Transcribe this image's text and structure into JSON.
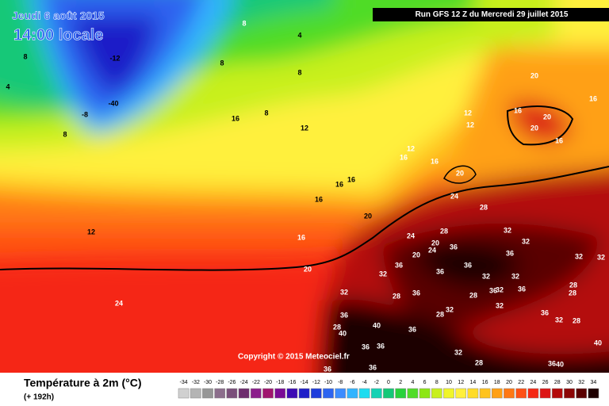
{
  "header": {
    "date": "Jeudi 6 août 2015",
    "time": "14:00 locale"
  },
  "run": "Run GFS 12 Z du Mercredi 29 juillet 2015",
  "copyright": "Copyright © 2015 Meteociel.fr",
  "legend": {
    "title": "Température à 2m (°C)",
    "subtitle": "(+ 192h)",
    "scale": [
      {
        "value": -34,
        "color": "#d0d0d0"
      },
      {
        "value": -32,
        "color": "#b4b4b4"
      },
      {
        "value": -30,
        "color": "#969696"
      },
      {
        "value": -28,
        "color": "#8c6e8c"
      },
      {
        "value": -26,
        "color": "#7a4f7a"
      },
      {
        "value": -24,
        "color": "#6e2d6e"
      },
      {
        "value": -22,
        "color": "#8c1e8c"
      },
      {
        "value": -20,
        "color": "#a0146e"
      },
      {
        "value": -18,
        "color": "#7a0a96"
      },
      {
        "value": -16,
        "color": "#3c0ab4"
      },
      {
        "value": -14,
        "color": "#1e1ec8"
      },
      {
        "value": -12,
        "color": "#1e3cdc"
      },
      {
        "value": -10,
        "color": "#2d64f0"
      },
      {
        "value": -8,
        "color": "#3c8cff"
      },
      {
        "value": -6,
        "color": "#32b4ff"
      },
      {
        "value": -4,
        "color": "#1edcf0"
      },
      {
        "value": -2,
        "color": "#14d2b4"
      },
      {
        "value": 0,
        "color": "#14c878"
      },
      {
        "value": 2,
        "color": "#28d23c"
      },
      {
        "value": 4,
        "color": "#50dc28"
      },
      {
        "value": 6,
        "color": "#8ce614"
      },
      {
        "value": 8,
        "color": "#c8f01e"
      },
      {
        "value": 10,
        "color": "#f0f528"
      },
      {
        "value": 12,
        "color": "#fff03c"
      },
      {
        "value": 14,
        "color": "#ffdc28"
      },
      {
        "value": 16,
        "color": "#ffc31e"
      },
      {
        "value": 18,
        "color": "#ffa014"
      },
      {
        "value": 20,
        "color": "#ff7814"
      },
      {
        "value": 22,
        "color": "#ff5014"
      },
      {
        "value": 24,
        "color": "#f52814"
      },
      {
        "value": 26,
        "color": "#dc1414"
      },
      {
        "value": 28,
        "color": "#b40a0a"
      },
      {
        "value": 30,
        "color": "#8c0505"
      },
      {
        "value": 32,
        "color": "#5a0000"
      },
      {
        "value": 34,
        "color": "#1e0000"
      }
    ]
  },
  "contour_labels": [
    -12,
    -40,
    -8,
    4,
    8,
    8,
    8,
    4,
    8,
    8,
    8,
    16,
    12,
    12,
    16,
    20,
    24,
    20,
    16,
    16,
    20,
    20,
    16,
    12,
    12,
    12,
    16,
    16,
    20,
    24,
    16,
    16,
    16,
    20,
    24,
    28,
    28,
    32,
    32,
    20,
    20,
    24,
    36,
    36,
    32,
    36,
    36,
    36,
    32,
    32,
    28,
    32,
    28,
    36,
    28,
    40,
    36,
    40,
    36,
    36,
    32,
    28,
    40,
    36,
    40,
    36,
    36,
    32,
    28,
    36,
    32,
    36,
    28,
    32,
    28,
    36,
    32,
    36,
    32,
    32,
    28
  ]
}
